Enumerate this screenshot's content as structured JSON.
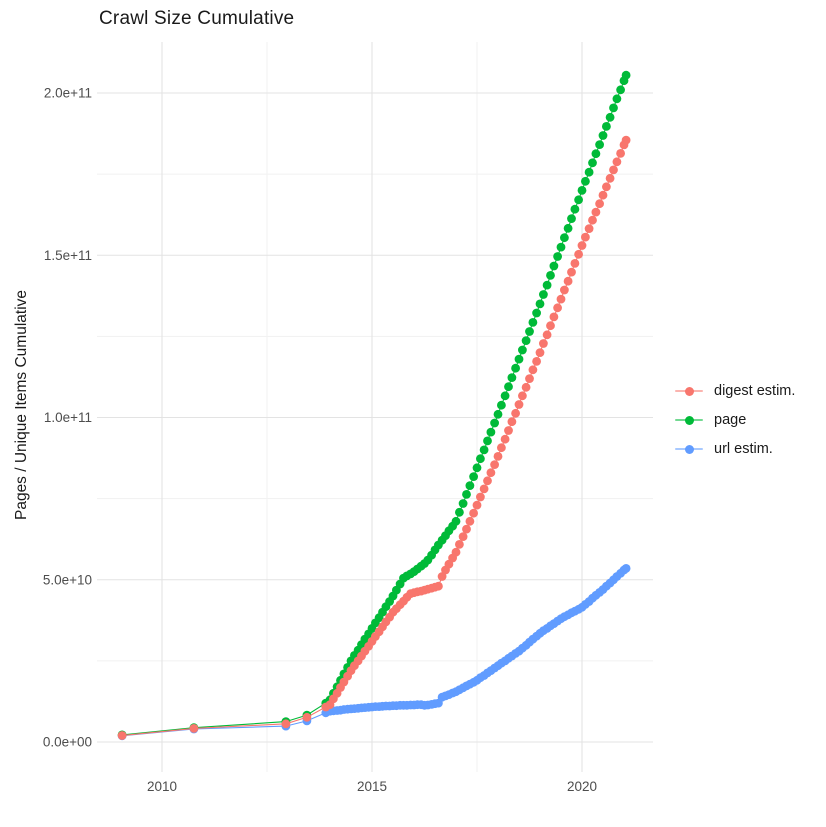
{
  "title": "Crawl Size Cumulative",
  "y_axis_title": "Pages / Unique Items Cumulative",
  "x_axis_title": "",
  "legend": {
    "position": "right",
    "items": [
      {
        "label": "digest estim.",
        "color": "#F8766D"
      },
      {
        "label": "page",
        "color": "#00BA38"
      },
      {
        "label": "url estim.",
        "color": "#619CFF"
      }
    ]
  },
  "style": {
    "background": "#FFFFFF",
    "major_grid_color": "#E3E3E3",
    "minor_grid_color": "#F1F1F1",
    "tick_text_color": "#4D4D4D",
    "title_text_color": "#1A1A1A"
  },
  "axes": {
    "x": {
      "major_ticks": [
        {
          "year": 2010,
          "label": "2010"
        },
        {
          "year": 2015,
          "label": "2015"
        },
        {
          "year": 2020,
          "label": "2020"
        }
      ],
      "minor_tick_years": [
        2012.5,
        2017.5
      ]
    },
    "y": {
      "major_ticks": [
        {
          "value_e9": 0,
          "label": "0.0e+00"
        },
        {
          "value_e9": 50,
          "label": "5.0e+10"
        },
        {
          "value_e9": 100,
          "label": "1.0e+11"
        },
        {
          "value_e9": 150,
          "label": "1.5e+11"
        },
        {
          "value_e9": 200,
          "label": "2.0e+11"
        }
      ],
      "minor_tick_values_e9": [
        25,
        75,
        125,
        175
      ]
    }
  },
  "chart_data": {
    "type": "scatter",
    "title": "Crawl Size Cumulative",
    "xlabel": "",
    "ylabel": "Pages / Unique Items Cumulative",
    "grid": "on",
    "legend_position": "right",
    "x_range_years": [
      2008.45,
      2021.7
    ],
    "y_range": [
      0,
      216000000000.0
    ],
    "value_unit_note": "point values in 1e9 items (billions); e.g. 205.5 means 2.055e+11",
    "series": [
      {
        "name": "url estim.",
        "color": "#619CFF",
        "points_year_value_e9": [
          [
            2009.05,
            1.9
          ],
          [
            2010.76,
            4
          ],
          [
            2012.95,
            4.9
          ],
          [
            2013.45,
            6.5
          ],
          [
            2013.9,
            9
          ],
          [
            2014,
            9.5
          ],
          [
            2014.08,
            9.6
          ],
          [
            2014.17,
            9.7
          ],
          [
            2014.25,
            9.8
          ],
          [
            2014.33,
            10
          ],
          [
            2014.42,
            10.1
          ],
          [
            2014.5,
            10.2
          ],
          [
            2014.58,
            10.3
          ],
          [
            2014.67,
            10.4
          ],
          [
            2014.75,
            10.5
          ],
          [
            2014.83,
            10.6
          ],
          [
            2014.92,
            10.7
          ],
          [
            2015,
            10.8
          ],
          [
            2015.08,
            10.9
          ],
          [
            2015.17,
            10.9
          ],
          [
            2015.25,
            11
          ],
          [
            2015.33,
            11.1
          ],
          [
            2015.42,
            11.1
          ],
          [
            2015.5,
            11.2
          ],
          [
            2015.58,
            11.2
          ],
          [
            2015.67,
            11.3
          ],
          [
            2015.75,
            11.3
          ],
          [
            2015.83,
            11.3
          ],
          [
            2015.92,
            11.4
          ],
          [
            2016,
            11.4
          ],
          [
            2016.08,
            11.5
          ],
          [
            2016.17,
            11.5
          ],
          [
            2016.25,
            11.3
          ],
          [
            2016.33,
            11.4
          ],
          [
            2016.42,
            11.6
          ],
          [
            2016.5,
            11.8
          ],
          [
            2016.58,
            12
          ],
          [
            2016.67,
            13.8
          ],
          [
            2016.75,
            14.2
          ],
          [
            2016.83,
            14.6
          ],
          [
            2016.92,
            15.1
          ],
          [
            2017,
            15.5
          ],
          [
            2017.08,
            16.1
          ],
          [
            2017.17,
            16.7
          ],
          [
            2017.25,
            17.3
          ],
          [
            2017.33,
            17.8
          ],
          [
            2017.42,
            18.4
          ],
          [
            2017.5,
            19
          ],
          [
            2017.58,
            19.8
          ],
          [
            2017.67,
            20.5
          ],
          [
            2017.75,
            21.3
          ],
          [
            2017.83,
            22
          ],
          [
            2017.92,
            22.8
          ],
          [
            2018,
            23.5
          ],
          [
            2018.08,
            24.3
          ],
          [
            2018.17,
            25
          ],
          [
            2018.25,
            25.8
          ],
          [
            2018.33,
            26.5
          ],
          [
            2018.42,
            27.3
          ],
          [
            2018.5,
            28
          ],
          [
            2018.58,
            28.9
          ],
          [
            2018.67,
            29.8
          ],
          [
            2018.75,
            30.8
          ],
          [
            2018.83,
            31.7
          ],
          [
            2018.92,
            32.6
          ],
          [
            2019,
            33.5
          ],
          [
            2019.08,
            34.3
          ],
          [
            2019.17,
            35
          ],
          [
            2019.25,
            35.8
          ],
          [
            2019.33,
            36.5
          ],
          [
            2019.42,
            37.3
          ],
          [
            2019.5,
            38
          ],
          [
            2019.58,
            38.6
          ],
          [
            2019.67,
            39.2
          ],
          [
            2019.75,
            39.8
          ],
          [
            2019.83,
            40.3
          ],
          [
            2019.92,
            40.9
          ],
          [
            2020,
            41.5
          ],
          [
            2020.08,
            42.4
          ],
          [
            2020.17,
            43.3
          ],
          [
            2020.25,
            44.3
          ],
          [
            2020.33,
            45.2
          ],
          [
            2020.42,
            46.1
          ],
          [
            2020.5,
            47
          ],
          [
            2020.58,
            48
          ],
          [
            2020.67,
            49
          ],
          [
            2020.75,
            50
          ],
          [
            2020.83,
            51
          ],
          [
            2020.92,
            52
          ],
          [
            2021,
            53
          ],
          [
            2021.05,
            53.5
          ]
        ]
      },
      {
        "name": "page",
        "color": "#00BA38",
        "points_year_value_e9": [
          [
            2009.05,
            2.2
          ],
          [
            2010.76,
            4.4
          ],
          [
            2012.95,
            6.3
          ],
          [
            2013.45,
            8.3
          ],
          [
            2013.9,
            12
          ],
          [
            2014,
            13
          ],
          [
            2014.08,
            15
          ],
          [
            2014.17,
            17
          ],
          [
            2014.25,
            19
          ],
          [
            2014.33,
            21
          ],
          [
            2014.42,
            23
          ],
          [
            2014.5,
            25
          ],
          [
            2014.58,
            26.7
          ],
          [
            2014.67,
            28.3
          ],
          [
            2014.75,
            30
          ],
          [
            2014.83,
            31.7
          ],
          [
            2014.92,
            33.3
          ],
          [
            2015,
            35
          ],
          [
            2015.08,
            36.7
          ],
          [
            2015.17,
            38.3
          ],
          [
            2015.25,
            40
          ],
          [
            2015.33,
            41.7
          ],
          [
            2015.42,
            43.3
          ],
          [
            2015.5,
            45
          ],
          [
            2015.58,
            46.8
          ],
          [
            2015.67,
            48.7
          ],
          [
            2015.75,
            50.5
          ],
          [
            2015.83,
            51.2
          ],
          [
            2015.92,
            51.8
          ],
          [
            2016,
            52.5
          ],
          [
            2016.08,
            53.3
          ],
          [
            2016.17,
            54.2
          ],
          [
            2016.25,
            55
          ],
          [
            2016.33,
            56.1
          ],
          [
            2016.42,
            57.6
          ],
          [
            2016.5,
            59.2
          ],
          [
            2016.58,
            60.7
          ],
          [
            2016.67,
            62.2
          ],
          [
            2016.75,
            63.6
          ],
          [
            2016.83,
            65.1
          ],
          [
            2016.92,
            66.5
          ],
          [
            2017,
            68
          ],
          [
            2017.08,
            70.8
          ],
          [
            2017.17,
            73.5
          ],
          [
            2017.25,
            76.3
          ],
          [
            2017.33,
            79
          ],
          [
            2017.42,
            81.8
          ],
          [
            2017.5,
            84.5
          ],
          [
            2017.58,
            87.3
          ],
          [
            2017.67,
            90
          ],
          [
            2017.75,
            92.8
          ],
          [
            2017.83,
            95.5
          ],
          [
            2017.92,
            98.3
          ],
          [
            2018,
            101
          ],
          [
            2018.08,
            103.8
          ],
          [
            2018.17,
            106.7
          ],
          [
            2018.25,
            109.5
          ],
          [
            2018.33,
            112.3
          ],
          [
            2018.42,
            115.2
          ],
          [
            2018.5,
            118
          ],
          [
            2018.58,
            120.8
          ],
          [
            2018.67,
            123.7
          ],
          [
            2018.75,
            126.5
          ],
          [
            2018.83,
            129.3
          ],
          [
            2018.92,
            132.2
          ],
          [
            2019,
            135
          ],
          [
            2019.08,
            137.9
          ],
          [
            2019.17,
            140.8
          ],
          [
            2019.25,
            143.8
          ],
          [
            2019.33,
            146.7
          ],
          [
            2019.42,
            149.6
          ],
          [
            2019.5,
            152.5
          ],
          [
            2019.58,
            155.4
          ],
          [
            2019.67,
            158.3
          ],
          [
            2019.75,
            161.3
          ],
          [
            2019.83,
            164.2
          ],
          [
            2019.92,
            167.1
          ],
          [
            2020,
            170
          ],
          [
            2020.08,
            172.8
          ],
          [
            2020.17,
            175.6
          ],
          [
            2020.25,
            178.5
          ],
          [
            2020.33,
            181.3
          ],
          [
            2020.42,
            184.1
          ],
          [
            2020.5,
            186.9
          ],
          [
            2020.58,
            189.7
          ],
          [
            2020.67,
            192.5
          ],
          [
            2020.75,
            195.4
          ],
          [
            2020.83,
            198.2
          ],
          [
            2020.92,
            201
          ],
          [
            2021,
            203.8
          ],
          [
            2021.05,
            205.5
          ]
        ]
      },
      {
        "name": "digest estim.",
        "color": "#F8766D",
        "points_year_value_e9": [
          [
            2009.05,
            2
          ],
          [
            2010.76,
            4.2
          ],
          [
            2012.95,
            5.6
          ],
          [
            2013.45,
            7.6
          ],
          [
            2013.9,
            10.8
          ],
          [
            2014,
            11.5
          ],
          [
            2014.08,
            13.3
          ],
          [
            2014.17,
            15
          ],
          [
            2014.25,
            16.8
          ],
          [
            2014.33,
            18.5
          ],
          [
            2014.42,
            20.3
          ],
          [
            2014.5,
            22
          ],
          [
            2014.58,
            23.5
          ],
          [
            2014.67,
            25
          ],
          [
            2014.75,
            26.5
          ],
          [
            2014.83,
            28
          ],
          [
            2014.92,
            29.5
          ],
          [
            2015,
            31
          ],
          [
            2015.08,
            32.5
          ],
          [
            2015.17,
            34
          ],
          [
            2015.25,
            35.5
          ],
          [
            2015.33,
            37
          ],
          [
            2015.42,
            38.5
          ],
          [
            2015.5,
            40
          ],
          [
            2015.58,
            41.1
          ],
          [
            2015.67,
            42.3
          ],
          [
            2015.75,
            43.4
          ],
          [
            2015.83,
            44.6
          ],
          [
            2015.92,
            45.7
          ],
          [
            2016,
            46
          ],
          [
            2016.08,
            46.3
          ],
          [
            2016.17,
            46.5
          ],
          [
            2016.25,
            46.8
          ],
          [
            2016.33,
            47.1
          ],
          [
            2016.42,
            47.4
          ],
          [
            2016.5,
            47.7
          ],
          [
            2016.58,
            48
          ],
          [
            2016.67,
            51
          ],
          [
            2016.75,
            53
          ],
          [
            2016.83,
            54.8
          ],
          [
            2016.92,
            56.7
          ],
          [
            2017,
            58.5
          ],
          [
            2017.08,
            60.9
          ],
          [
            2017.17,
            63.3
          ],
          [
            2017.25,
            65.6
          ],
          [
            2017.33,
            68
          ],
          [
            2017.42,
            70.5
          ],
          [
            2017.5,
            73
          ],
          [
            2017.58,
            75.5
          ],
          [
            2017.67,
            78
          ],
          [
            2017.75,
            80.5
          ],
          [
            2017.83,
            83
          ],
          [
            2017.92,
            85.5
          ],
          [
            2018,
            88
          ],
          [
            2018.08,
            90.7
          ],
          [
            2018.17,
            93.3
          ],
          [
            2018.25,
            96
          ],
          [
            2018.33,
            98.7
          ],
          [
            2018.42,
            101.3
          ],
          [
            2018.5,
            104
          ],
          [
            2018.58,
            106.7
          ],
          [
            2018.67,
            109.3
          ],
          [
            2018.75,
            112
          ],
          [
            2018.83,
            114.7
          ],
          [
            2018.92,
            117.3
          ],
          [
            2019,
            120
          ],
          [
            2019.08,
            122.8
          ],
          [
            2019.17,
            125.5
          ],
          [
            2019.25,
            128.3
          ],
          [
            2019.33,
            131
          ],
          [
            2019.42,
            133.8
          ],
          [
            2019.5,
            136.5
          ],
          [
            2019.58,
            139.3
          ],
          [
            2019.67,
            142
          ],
          [
            2019.75,
            144.8
          ],
          [
            2019.83,
            147.5
          ],
          [
            2019.92,
            150.3
          ],
          [
            2020,
            153
          ],
          [
            2020.08,
            155.6
          ],
          [
            2020.17,
            158.2
          ],
          [
            2020.25,
            160.8
          ],
          [
            2020.33,
            163.3
          ],
          [
            2020.42,
            165.9
          ],
          [
            2020.5,
            168.5
          ],
          [
            2020.58,
            171.1
          ],
          [
            2020.67,
            173.7
          ],
          [
            2020.75,
            176.3
          ],
          [
            2020.83,
            178.8
          ],
          [
            2020.92,
            181.4
          ],
          [
            2021,
            184
          ],
          [
            2021.05,
            185.5
          ]
        ]
      }
    ]
  }
}
